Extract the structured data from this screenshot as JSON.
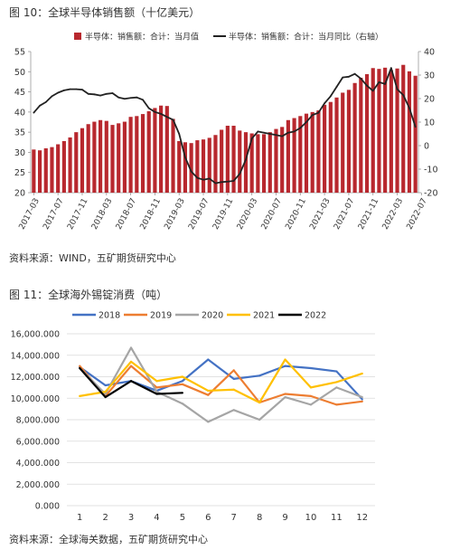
{
  "figure1": {
    "title": "图 10：全球半导体销售额（十亿美元）",
    "source": "资料来源：WIND，五矿期货研究中心"
  },
  "figure2": {
    "title": "图 11：全球海外锡锭消费（吨）",
    "source": "资料来源：全球海关数据，五矿期货研究中心"
  },
  "chart_data": [
    {
      "type": "bar",
      "title": "全球半导体销售额（十亿美元）",
      "x_ticks": [
        "2017-03",
        "2017-07",
        "2017-11",
        "2018-03",
        "2018-07",
        "2018-11",
        "2019-03",
        "2019-07",
        "2019-11",
        "2020-03",
        "2020-07",
        "2020-11",
        "2021-03",
        "2021-07",
        "2021-11",
        "2022-03",
        "2022-07"
      ],
      "ylim": [
        20,
        55
      ],
      "y_ticks": [
        20,
        25,
        30,
        35,
        40,
        45,
        50,
        55
      ],
      "y2lim": [
        -20,
        40
      ],
      "y2_ticks": [
        -20,
        -10,
        0,
        10,
        20,
        30,
        40
      ],
      "legend_position": "top",
      "grid": false,
      "series": [
        {
          "name": "半导体：销售额：合计：当月值",
          "type": "bar",
          "axis": "left",
          "color": "#b8282e",
          "values": [
            30.7,
            30.5,
            31.0,
            31.3,
            32.0,
            32.8,
            33.7,
            35.0,
            36.0,
            37.0,
            37.6,
            38.0,
            37.8,
            36.8,
            37.2,
            37.6,
            38.8,
            39.0,
            39.5,
            40.2,
            41.0,
            41.6,
            41.5,
            38.3,
            32.8,
            32.5,
            32.3,
            33.0,
            33.2,
            33.6,
            34.3,
            35.6,
            36.6,
            36.6,
            35.4,
            35.0,
            34.7,
            34.5,
            34.5,
            35.0,
            35.8,
            36.3,
            38.0,
            38.5,
            39.0,
            39.6,
            40.0,
            40.4,
            41.8,
            42.5,
            43.6,
            44.8,
            45.5,
            47.2,
            48.5,
            49.4,
            50.9,
            50.7,
            51.0,
            50.4,
            50.8,
            51.7,
            50.1,
            49.0
          ]
        },
        {
          "name": "半导体：销售额：合计：当月同比（右轴）",
          "type": "line",
          "axis": "right",
          "color": "#222222",
          "values": [
            14.0,
            17.0,
            18.5,
            21.0,
            22.5,
            23.5,
            24.0,
            24.0,
            23.8,
            22.0,
            21.8,
            21.3,
            22.0,
            22.3,
            20.5,
            19.9,
            20.3,
            20.5,
            19.5,
            15.9,
            14.3,
            13.5,
            12.2,
            11.0,
            5.0,
            -5.0,
            -11.0,
            -13.7,
            -14.5,
            -14.0,
            -16.0,
            -15.5,
            -15.3,
            -15.0,
            -12.0,
            -6.0,
            3.0,
            6.0,
            5.5,
            5.0,
            4.5,
            4.0,
            5.5,
            6.0,
            7.5,
            10.0,
            13.0,
            14.0,
            18.0,
            21.0,
            25.0,
            29.0,
            29.3,
            30.5,
            28.5,
            25.5,
            23.3,
            27.0,
            26.2,
            33.0,
            24.0,
            21.5,
            16.0,
            8.0
          ]
        }
      ]
    },
    {
      "type": "line",
      "title": "全球海外锡锭消费（吨）",
      "x_ticks": [
        "1",
        "2",
        "3",
        "4",
        "5",
        "6",
        "7",
        "8",
        "9",
        "10",
        "11",
        "12"
      ],
      "y_ticks": [
        "0.000",
        "2,000.000",
        "4,000.000",
        "6,000.000",
        "8,000.000",
        "10,000.000",
        "12,000.000",
        "14,000.000",
        "16,000.000"
      ],
      "y_tick_values": [
        0,
        2000,
        4000,
        6000,
        8000,
        10000,
        12000,
        14000,
        16000
      ],
      "ylim": [
        0,
        16000
      ],
      "legend_position": "top",
      "grid": true,
      "series": [
        {
          "name": "2018",
          "color": "#4472c4",
          "values": [
            12900,
            11200,
            11600,
            10700,
            11600,
            13600,
            11800,
            12100,
            13000,
            12800,
            12500,
            9900
          ]
        },
        {
          "name": "2019",
          "color": "#ed7d31",
          "values": [
            13000,
            10200,
            13000,
            11000,
            11300,
            10300,
            12600,
            9600,
            10400,
            10200,
            9400,
            9700
          ]
        },
        {
          "name": "2020",
          "color": "#a5a5a5",
          "values": [
            12800,
            10400,
            14700,
            10600,
            9500,
            7800,
            8900,
            8000,
            10100,
            9400,
            11000,
            10100
          ]
        },
        {
          "name": "2021",
          "color": "#ffc000",
          "values": [
            10200,
            10600,
            13400,
            11600,
            12000,
            10700,
            10800,
            9600,
            13600,
            11000,
            11500,
            12300
          ]
        },
        {
          "name": "2022",
          "color": "#000000",
          "values": [
            12800,
            10100,
            11600,
            10400,
            10500
          ]
        }
      ]
    }
  ]
}
